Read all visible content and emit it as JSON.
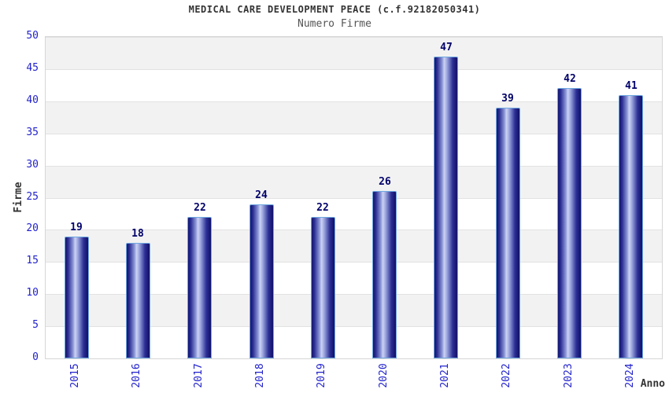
{
  "chart_data": {
    "type": "bar",
    "title": "MEDICAL CARE DEVELOPMENT PEACE (c.f.92182050341)",
    "subtitle": "Numero Firme",
    "xlabel": "Anno",
    "ylabel": "Firme",
    "categories": [
      "2015",
      "2016",
      "2017",
      "2018",
      "2019",
      "2020",
      "2021",
      "2022",
      "2023",
      "2024"
    ],
    "values": [
      19,
      18,
      22,
      24,
      22,
      26,
      47,
      39,
      42,
      41
    ],
    "ylim": [
      0,
      50
    ],
    "ytick_step": 5,
    "yticks": [
      0,
      5,
      10,
      15,
      20,
      25,
      30,
      35,
      40,
      45,
      50
    ],
    "grid": true,
    "legend": "none",
    "band_pattern": "alternating horizontal bands every 5 units, gray on 5-10,15-20,25-30,35-40,45-50",
    "colors": {
      "tick_label": "#2222cc",
      "value_label": "#00006a",
      "title": "#333333",
      "subtitle": "#555555",
      "band_gray": "#f2f2f2",
      "gridline": "#e2e2e2",
      "plot_border": "#d6d6d6",
      "bar_border": "#6fa8e0",
      "bar_dark": "#14146e",
      "bar_dark2": "#2c2f94",
      "bar_mid": "#8d97d6",
      "bar_light": "#ccd3f4",
      "bar_mid2": "#9ba5de"
    }
  }
}
